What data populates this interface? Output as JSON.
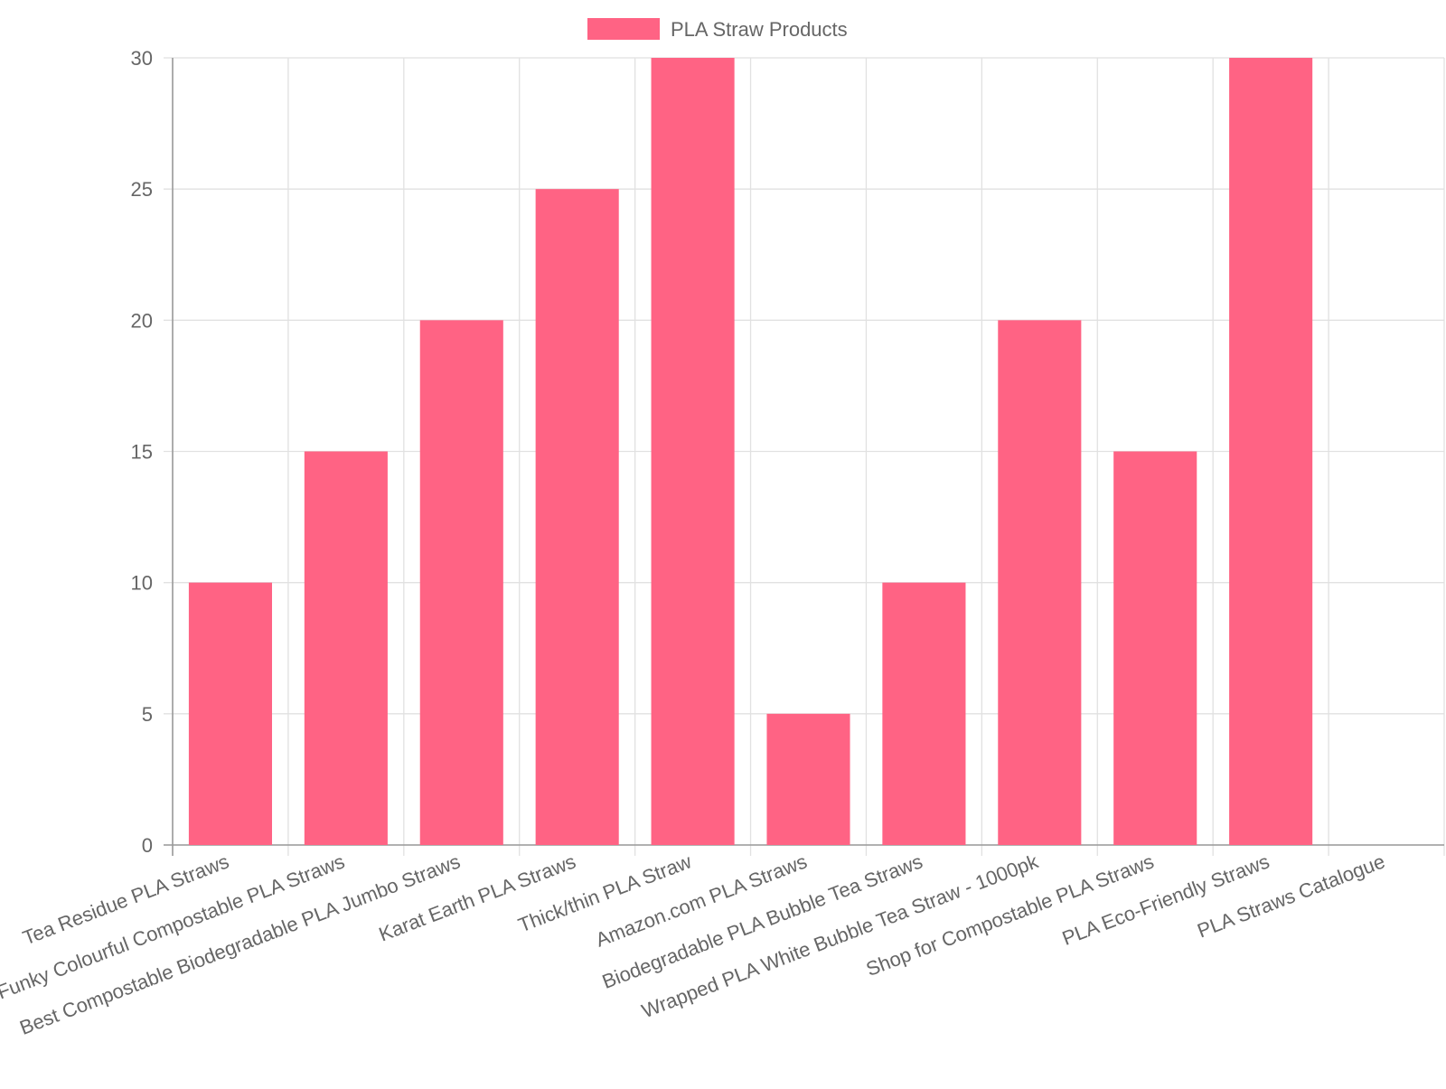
{
  "chart_data": {
    "type": "bar",
    "categories": [
      "Tea Residue PLA Straws",
      "Funky Colourful Compostable PLA Straws",
      "Best Compostable Biodegradable PLA Jumbo Straws",
      "Karat Earth PLA Straws",
      "Thick/thin PLA Straw",
      "Amazon.com PLA Straws",
      "Biodegradable PLA Bubble Tea Straws",
      "Wrapped PLA White Bubble Tea Straw - 1000pk",
      "Shop for Compostable PLA Straws",
      "PLA Eco-Friendly Straws",
      "PLA Straws Catalogue"
    ],
    "series": [
      {
        "name": "PLA Straw Products",
        "values": [
          10,
          15,
          20,
          25,
          30,
          5,
          10,
          20,
          15,
          30,
          null
        ],
        "color": "#ff6384"
      }
    ],
    "title": "",
    "xlabel": "",
    "ylabel": "",
    "ylim": [
      0,
      30
    ],
    "yticks": [
      "0",
      "5",
      "10",
      "15",
      "20",
      "25",
      "30"
    ],
    "grid": true,
    "legend_position": "top"
  }
}
